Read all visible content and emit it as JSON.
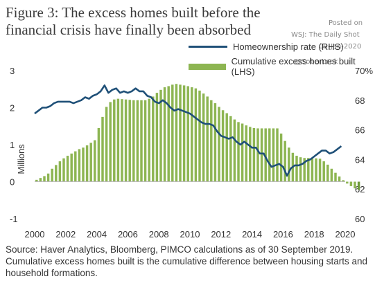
{
  "header": {
    "title": "Figure 3: The excess homes built before the financial crisis have finally been absorbed"
  },
  "watermark": {
    "line1": "Posted on",
    "line2": "WSJ: The Daily Shot",
    "date": "09-Jan-2020",
    "handle": "@SoberLook"
  },
  "source": "Source: Haver Analytics, Bloomberg, PIMCO calculations as of 30 September 2019. Cumulative excess homes built is the cumulative difference between housing starts and household formations.",
  "colors": {
    "line": "#1f5078",
    "bar": "#8db552",
    "bar_last": "#6e9a3a"
  },
  "chart_data": {
    "type": "bar",
    "ylabel": "Millions",
    "legend_position": "top-right",
    "x_ticks": [
      "2000",
      "2002",
      "2004",
      "2006",
      "2008",
      "2010",
      "2012",
      "2014",
      "2016",
      "2018",
      "2020"
    ],
    "y_left": {
      "range": [
        -1,
        3
      ],
      "ticks": [
        "-1",
        "0",
        "1",
        "2",
        "3"
      ]
    },
    "y_right": {
      "range": [
        60,
        70
      ],
      "ticks": [
        "60",
        "62",
        "64",
        "66",
        "68",
        "70%"
      ]
    },
    "series": [
      {
        "name": "Cumulative excess homes built (LHS)",
        "kind": "bar",
        "axis": "left",
        "start_year": 2000,
        "step": 0.25,
        "values": [
          0.05,
          0.1,
          0.15,
          0.22,
          0.35,
          0.45,
          0.55,
          0.63,
          0.7,
          0.76,
          0.82,
          0.88,
          0.92,
          0.98,
          1.05,
          1.12,
          1.45,
          1.75,
          2.02,
          2.15,
          2.22,
          2.24,
          2.23,
          2.22,
          2.21,
          2.2,
          2.2,
          2.2,
          2.2,
          2.24,
          2.3,
          2.4,
          2.48,
          2.55,
          2.58,
          2.62,
          2.64,
          2.62,
          2.6,
          2.58,
          2.55,
          2.52,
          2.46,
          2.38,
          2.3,
          2.2,
          2.12,
          2.02,
          1.93,
          1.85,
          1.77,
          1.68,
          1.61,
          1.57,
          1.52,
          1.48,
          1.45,
          1.44,
          1.44,
          1.44,
          1.44,
          1.44,
          1.44,
          1.3,
          1.1,
          0.92,
          0.78,
          0.7,
          0.66,
          0.64,
          0.64,
          0.63,
          0.63,
          0.62,
          0.55,
          0.46,
          0.35,
          0.24,
          0.14,
          0.04,
          -0.05,
          -0.12,
          -0.18,
          -0.22
        ]
      },
      {
        "name": "Homeownership rate (RHS)",
        "kind": "line",
        "axis": "right",
        "points": [
          [
            2000.0,
            67.1
          ],
          [
            2000.25,
            67.3
          ],
          [
            2000.5,
            67.5
          ],
          [
            2000.75,
            67.5
          ],
          [
            2001.0,
            67.6
          ],
          [
            2001.25,
            67.8
          ],
          [
            2001.5,
            67.9
          ],
          [
            2001.75,
            67.9
          ],
          [
            2002.0,
            67.9
          ],
          [
            2002.25,
            67.9
          ],
          [
            2002.5,
            67.8
          ],
          [
            2002.75,
            67.9
          ],
          [
            2003.0,
            68.0
          ],
          [
            2003.25,
            68.2
          ],
          [
            2003.5,
            68.1
          ],
          [
            2003.75,
            68.3
          ],
          [
            2004.0,
            68.4
          ],
          [
            2004.25,
            68.6
          ],
          [
            2004.5,
            69.0
          ],
          [
            2004.75,
            68.5
          ],
          [
            2005.0,
            68.7
          ],
          [
            2005.25,
            68.8
          ],
          [
            2005.5,
            68.5
          ],
          [
            2005.75,
            68.6
          ],
          [
            2006.0,
            68.5
          ],
          [
            2006.25,
            68.6
          ],
          [
            2006.5,
            68.8
          ],
          [
            2006.75,
            68.6
          ],
          [
            2007.0,
            68.6
          ],
          [
            2007.25,
            68.3
          ],
          [
            2007.5,
            68.2
          ],
          [
            2007.75,
            67.9
          ],
          [
            2008.0,
            67.8
          ],
          [
            2008.25,
            68.0
          ],
          [
            2008.5,
            67.8
          ],
          [
            2008.75,
            67.5
          ],
          [
            2009.0,
            67.3
          ],
          [
            2009.25,
            67.4
          ],
          [
            2009.5,
            67.3
          ],
          [
            2009.75,
            67.2
          ],
          [
            2010.0,
            67.1
          ],
          [
            2010.25,
            66.9
          ],
          [
            2010.5,
            66.7
          ],
          [
            2010.75,
            66.5
          ],
          [
            2011.0,
            66.4
          ],
          [
            2011.25,
            66.4
          ],
          [
            2011.5,
            66.3
          ],
          [
            2011.75,
            65.9
          ],
          [
            2012.0,
            65.6
          ],
          [
            2012.25,
            65.5
          ],
          [
            2012.5,
            65.4
          ],
          [
            2012.75,
            65.5
          ],
          [
            2013.0,
            65.2
          ],
          [
            2013.25,
            65.0
          ],
          [
            2013.5,
            65.2
          ],
          [
            2013.75,
            65.0
          ],
          [
            2014.0,
            64.8
          ],
          [
            2014.25,
            64.8
          ],
          [
            2014.5,
            64.4
          ],
          [
            2014.75,
            64.4
          ],
          [
            2015.0,
            63.9
          ],
          [
            2015.25,
            63.5
          ],
          [
            2015.5,
            63.6
          ],
          [
            2015.75,
            63.7
          ],
          [
            2016.0,
            63.5
          ],
          [
            2016.25,
            62.9
          ],
          [
            2016.5,
            63.4
          ],
          [
            2016.75,
            63.6
          ],
          [
            2017.0,
            63.6
          ],
          [
            2017.25,
            63.7
          ],
          [
            2017.5,
            63.9
          ],
          [
            2017.75,
            64.0
          ],
          [
            2018.0,
            64.2
          ],
          [
            2018.25,
            64.4
          ],
          [
            2018.5,
            64.6
          ],
          [
            2018.75,
            64.6
          ],
          [
            2019.0,
            64.4
          ],
          [
            2019.25,
            64.5
          ],
          [
            2019.5,
            64.7
          ],
          [
            2019.75,
            64.9
          ]
        ]
      }
    ]
  }
}
